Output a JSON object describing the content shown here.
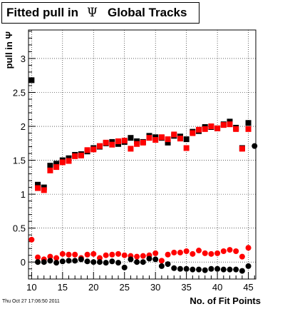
{
  "chart_data": {
    "type": "scatter",
    "title": "Fitted pull in Ψ   Global Tracks",
    "xlabel": "No. of Fit Points",
    "ylabel": "pull in Ψ",
    "xlim": [
      9.5,
      46.2
    ],
    "ylim": [
      -0.25,
      3.42
    ],
    "xticks": [
      10,
      15,
      20,
      25,
      30,
      35,
      40,
      45
    ],
    "yticks": [
      0,
      0.5,
      1,
      1.5,
      2,
      2.5,
      3
    ],
    "grid": true,
    "legend": "none",
    "colors": {
      "black": "#000000",
      "red": "#ff0000"
    },
    "series": [
      {
        "marker": "square",
        "color": "#000000",
        "x": [
          10,
          11,
          12,
          13,
          14,
          15,
          16,
          17,
          18,
          19,
          20,
          21,
          22,
          23,
          24,
          25,
          26,
          27,
          28,
          29,
          30,
          31,
          32,
          33,
          34,
          35,
          36,
          37,
          38,
          39,
          40,
          41,
          42,
          43,
          44,
          45
        ],
        "y": [
          2.68,
          1.14,
          1.1,
          1.42,
          1.45,
          1.5,
          1.53,
          1.58,
          1.59,
          1.63,
          1.68,
          1.7,
          1.75,
          1.77,
          1.74,
          1.77,
          1.83,
          1.78,
          1.77,
          1.86,
          1.84,
          1.83,
          1.76,
          1.86,
          1.85,
          1.81,
          1.92,
          1.93,
          1.99,
          1.99,
          1.97,
          2.03,
          2.07,
          1.98,
          1.68,
          2.05
        ]
      },
      {
        "marker": "square",
        "color": "#ff0000",
        "x": [
          11,
          12,
          13,
          14,
          15,
          16,
          17,
          18,
          19,
          20,
          21,
          22,
          23,
          24,
          25,
          26,
          27,
          28,
          29,
          30,
          31,
          32,
          33,
          34,
          35,
          36,
          37,
          38,
          39,
          40,
          41,
          42,
          43,
          44,
          45
        ],
        "y": [
          1.09,
          1.06,
          1.35,
          1.4,
          1.47,
          1.49,
          1.56,
          1.57,
          1.65,
          1.66,
          1.71,
          1.76,
          1.73,
          1.78,
          1.79,
          1.67,
          1.74,
          1.76,
          1.83,
          1.8,
          1.84,
          1.81,
          1.88,
          1.82,
          1.68,
          1.9,
          1.95,
          1.96,
          2.0,
          1.97,
          2.02,
          2.03,
          1.96,
          1.67,
          1.96
        ]
      },
      {
        "marker": "circle",
        "color": "#ff0000",
        "x": [
          10,
          11,
          12,
          13,
          14,
          15,
          16,
          17,
          18,
          19,
          20,
          21,
          22,
          23,
          24,
          25,
          26,
          27,
          28,
          29,
          30,
          31,
          32,
          33,
          34,
          35,
          36,
          37,
          38,
          39,
          40,
          41,
          42,
          43,
          44,
          45
        ],
        "y": [
          0.33,
          0.07,
          0.04,
          0.08,
          0.06,
          0.12,
          0.11,
          0.11,
          0.06,
          0.11,
          0.12,
          0.06,
          0.1,
          0.11,
          0.12,
          0.1,
          0.09,
          0.08,
          0.09,
          0.1,
          0.13,
          0.02,
          0.11,
          0.14,
          0.14,
          0.16,
          0.12,
          0.17,
          0.13,
          0.12,
          0.13,
          0.16,
          0.18,
          0.16,
          0.08,
          0.21
        ]
      },
      {
        "marker": "circle",
        "color": "#000000",
        "x": [
          11,
          12,
          13,
          14,
          15,
          16,
          17,
          18,
          19,
          20,
          21,
          22,
          23,
          24,
          25,
          26,
          27,
          28,
          29,
          30,
          31,
          32,
          33,
          34,
          35,
          36,
          37,
          38,
          39,
          40,
          41,
          42,
          43,
          44,
          45,
          46
        ],
        "y": [
          0.0,
          0.0,
          0.02,
          -0.01,
          0.01,
          0.02,
          0.02,
          0.04,
          0.01,
          0.0,
          0.0,
          -0.01,
          0.01,
          -0.01,
          -0.08,
          0.04,
          0.0,
          0.0,
          0.05,
          0.04,
          -0.06,
          -0.03,
          -0.09,
          -0.1,
          -0.1,
          -0.11,
          -0.11,
          -0.12,
          -0.1,
          -0.1,
          -0.11,
          -0.11,
          -0.11,
          -0.13,
          -0.06,
          1.71
        ]
      }
    ]
  },
  "title_main": "Fitted pull in",
  "title_symbol": "Ψ",
  "title_suffix": "Global Tracks",
  "footer": "Thu Oct 27 17:06:50 2011"
}
